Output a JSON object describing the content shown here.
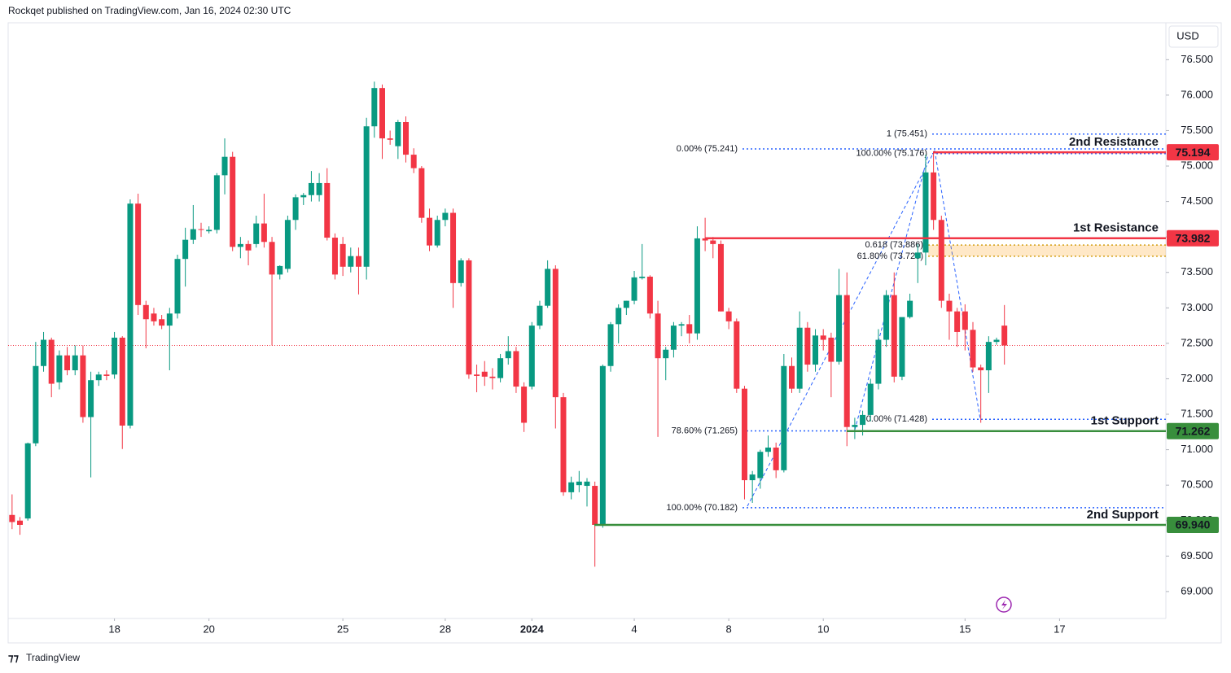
{
  "header": {
    "byline": "Rockqet published on TradingView.com, Jan 16, 2024 02:30 UTC",
    "brand": "TradingView"
  },
  "chart_data": {
    "type": "candlestick",
    "currency": "USD",
    "up_color": "#089981",
    "down_color": "#f23645",
    "grid": false,
    "ylim": [
      68.62,
      77.02
    ],
    "yticks": [
      {
        "value": 69,
        "label": "69.000"
      },
      {
        "value": 69.5,
        "label": "69.500"
      },
      {
        "value": 70,
        "label": "70.000"
      },
      {
        "value": 70.5,
        "label": "70.500"
      },
      {
        "value": 71,
        "label": "71.000"
      },
      {
        "value": 71.5,
        "label": "71.500"
      },
      {
        "value": 72,
        "label": "72.000"
      },
      {
        "value": 72.5,
        "label": "72.500"
      },
      {
        "value": 73,
        "label": "73.000"
      },
      {
        "value": 73.5,
        "label": "73.500"
      },
      {
        "value": 74,
        "label": "74.000"
      },
      {
        "value": 74.5,
        "label": "74.500"
      },
      {
        "value": 75,
        "label": "75.000"
      },
      {
        "value": 75.5,
        "label": "75.500"
      },
      {
        "value": 76,
        "label": "76.000"
      },
      {
        "value": 76.5,
        "label": "76.500"
      }
    ],
    "xlim": [
      -0.5,
      146.5
    ],
    "xticks": [
      {
        "value": 13,
        "label": "18"
      },
      {
        "value": 25,
        "label": "20"
      },
      {
        "value": 42,
        "label": "25"
      },
      {
        "value": 55,
        "label": "28"
      },
      {
        "value": 66,
        "label": "2024",
        "major": true
      },
      {
        "value": 79,
        "label": "4"
      },
      {
        "value": 91,
        "label": "8"
      },
      {
        "value": 103,
        "label": "10"
      },
      {
        "value": 121,
        "label": "15"
      },
      {
        "value": 133,
        "label": "17"
      }
    ],
    "open": [
      70.08,
      70.0,
      70.03,
      71.09,
      72.18,
      72.55,
      71.95,
      72.33,
      72.12,
      72.33,
      71.46,
      71.98,
      72.06,
      72.06,
      72.58,
      71.34,
      74.47,
      73.04,
      72.92,
      72.84,
      72.75,
      72.92,
      73.69,
      73.96,
      74.11,
      74.08,
      74.1,
      74.87,
      75.13,
      73.86,
      73.9,
      73.9,
      74.19,
      73.93,
      73.47,
      73.55,
      74.24,
      74.56,
      74.59,
      74.59,
      74.76,
      73.99,
      73.9,
      73.58,
      73.73,
      73.58,
      75.56,
      76.1,
      75.39,
      75.28,
      75.62,
      75.16,
      74.97,
      74.27,
      73.88,
      74.24,
      74.34,
      73.35,
      73.67,
      72.06,
      72.1,
      72.03,
      72.01,
      72.29,
      72.39,
      71.89,
      71.89,
      72.75,
      73.03,
      73.55,
      71.74,
      70.4,
      70.5,
      70.49,
      70.49,
      69.94,
      72.18,
      72.77,
      73.0,
      73.1,
      73.42,
      73.44,
      72.92,
      72.29,
      72.41,
      72.75,
      72.77,
      72.64,
      73.98,
      73.95,
      73.9,
      72.95,
      72.81,
      71.86,
      70.57,
      70.6,
      70.97,
      71.03,
      70.71,
      72.18,
      71.86,
      72.72,
      72.2,
      72.61,
      72.58,
      72.24,
      73.18,
      71.32,
      71.35,
      71.49,
      71.93,
      72.55,
      73.18,
      72.03,
      72.87,
      73.7,
      73.78,
      74.91,
      74.24,
      73.1,
      72.95,
      72.95,
      72.69,
      72.16,
      72.12,
      72.52,
      72.75
    ],
    "high": [
      70.37,
      70.05,
      71.1,
      72.52,
      72.66,
      72.58,
      72.4,
      72.45,
      72.47,
      72.47,
      72.1,
      72.1,
      72.12,
      72.66,
      72.6,
      74.53,
      74.61,
      73.1,
      73.0,
      72.9,
      73.0,
      73.75,
      74.13,
      74.45,
      74.2,
      74.15,
      74.9,
      75.39,
      75.2,
      74.0,
      73.95,
      74.3,
      74.61,
      74.0,
      73.6,
      74.3,
      74.6,
      74.62,
      74.93,
      74.9,
      74.97,
      74.05,
      74.0,
      73.85,
      73.85,
      75.68,
      76.19,
      76.15,
      75.5,
      75.65,
      75.7,
      75.25,
      75.0,
      74.4,
      74.3,
      74.4,
      74.4,
      73.7,
      73.7,
      72.2,
      72.25,
      72.15,
      72.35,
      72.6,
      72.45,
      71.95,
      72.8,
      73.1,
      73.67,
      73.6,
      71.8,
      70.62,
      70.7,
      70.6,
      70.55,
      72.2,
      72.8,
      73.05,
      73.1,
      73.52,
      73.9,
      73.46,
      73.1,
      72.45,
      72.8,
      72.8,
      72.9,
      74.15,
      74.27,
      74.0,
      73.95,
      73.0,
      72.85,
      71.9,
      70.7,
      71.0,
      71.2,
      71.1,
      72.35,
      72.3,
      72.95,
      72.8,
      72.7,
      72.7,
      72.65,
      73.55,
      73.5,
      71.45,
      71.55,
      72.0,
      72.7,
      73.25,
      73.5,
      72.85,
      73.2,
      73.9,
      75.16,
      75.2,
      74.3,
      73.2,
      73.0,
      73.05,
      72.8,
      72.2,
      72.6,
      72.58,
      73.04
    ],
    "low": [
      69.88,
      69.8,
      70.0,
      71.05,
      72.1,
      71.74,
      71.85,
      72.05,
      72.05,
      71.38,
      70.61,
      71.9,
      71.98,
      72.0,
      71.01,
      71.3,
      72.9,
      72.43,
      72.75,
      72.7,
      72.12,
      72.85,
      73.3,
      73.9,
      74.0,
      74.05,
      74.05,
      74.6,
      73.8,
      73.7,
      73.6,
      73.85,
      73.85,
      72.47,
      73.4,
      73.5,
      74.1,
      74.45,
      74.5,
      74.5,
      73.95,
      73.4,
      73.45,
      73.5,
      73.19,
      73.4,
      75.4,
      75.1,
      75.3,
      75.1,
      75.05,
      74.9,
      74.2,
      73.8,
      73.85,
      74.15,
      73.0,
      73.3,
      72.0,
      71.81,
      71.9,
      71.85,
      71.95,
      72.2,
      71.8,
      71.25,
      71.85,
      72.7,
      73.0,
      71.3,
      70.35,
      70.3,
      70.4,
      70.2,
      69.35,
      69.9,
      72.1,
      72.5,
      72.9,
      73.05,
      73.4,
      72.85,
      71.18,
      71.98,
      72.3,
      72.6,
      72.5,
      72.55,
      73.8,
      73.7,
      72.95,
      72.7,
      71.8,
      70.3,
      70.25,
      70.45,
      70.9,
      70.6,
      70.68,
      71.8,
      71.8,
      72.1,
      72.1,
      72.4,
      71.74,
      72.2,
      71.05,
      71.15,
      71.2,
      71.4,
      71.85,
      72.45,
      71.95,
      71.98,
      72.85,
      73.35,
      73.6,
      74.1,
      73.0,
      72.55,
      72.45,
      72.4,
      72.1,
      71.38,
      71.8,
      72.48,
      72.2
    ],
    "close": [
      69.98,
      69.94,
      71.09,
      72.18,
      72.55,
      71.93,
      72.33,
      72.12,
      72.33,
      71.46,
      71.98,
      72.06,
      72.04,
      72.58,
      71.34,
      74.47,
      73.04,
      72.84,
      72.81,
      72.75,
      72.92,
      73.69,
      73.96,
      74.11,
      74.1,
      74.1,
      74.87,
      75.13,
      73.86,
      73.9,
      73.81,
      74.19,
      73.93,
      73.47,
      73.59,
      74.24,
      74.56,
      74.59,
      74.76,
      74.76,
      73.99,
      73.47,
      73.58,
      73.73,
      73.58,
      75.56,
      76.1,
      75.39,
      75.37,
      75.62,
      75.16,
      74.97,
      74.27,
      73.88,
      74.24,
      74.34,
      73.35,
      73.67,
      72.06,
      72.04,
      72.03,
      72.01,
      72.29,
      72.39,
      71.89,
      71.38,
      72.75,
      73.03,
      73.55,
      71.74,
      70.4,
      70.54,
      70.55,
      70.55,
      69.94,
      72.18,
      72.77,
      73.0,
      73.1,
      73.43,
      73.44,
      72.92,
      72.29,
      72.41,
      72.75,
      72.77,
      72.64,
      73.98,
      73.95,
      73.9,
      72.95,
      72.81,
      71.86,
      70.57,
      70.65,
      70.97,
      71.03,
      70.71,
      72.18,
      71.86,
      72.72,
      72.2,
      72.61,
      72.55,
      72.24,
      73.18,
      71.32,
      71.35,
      71.49,
      71.93,
      72.55,
      73.18,
      72.03,
      72.87,
      73.1,
      73.78,
      74.91,
      74.24,
      73.1,
      72.95,
      72.66,
      72.69,
      72.16,
      72.12,
      72.52,
      72.55,
      72.47
    ],
    "levels": [
      {
        "label": "2nd Resistance",
        "value": 75.194,
        "color": "#f23645"
      },
      {
        "label": "1st Resistance",
        "value": 73.982,
        "color": "#f23645"
      },
      {
        "label": "1st Support",
        "value": 71.262,
        "color": "#388e3c"
      },
      {
        "label": "2nd Support",
        "value": 69.94,
        "value_label": "69.940",
        "color": "#388e3c"
      }
    ],
    "fib_lines": [
      {
        "label": "1 (75.451)",
        "value": 75.451,
        "color": "#2962ff"
      },
      {
        "label": "0.00% (75.241)",
        "value": 75.241,
        "color": "#2962ff"
      },
      {
        "label": "100.00% (75.176)",
        "value": 75.176,
        "color": "#2962ff"
      },
      {
        "label": "0.618 (73.886)",
        "value": 73.886,
        "color": "#d4a017"
      },
      {
        "label": "61.80% (73.728)",
        "value": 73.728,
        "color": "#d4a017"
      },
      {
        "label": "0.00% (71.428)",
        "value": 71.428,
        "color": "#2962ff"
      },
      {
        "label": "78.60% (71.265)",
        "value": 71.265,
        "color": "#2962ff"
      },
      {
        "label": "100.00% (70.182)",
        "value": 70.182,
        "color": "#2962ff"
      }
    ]
  }
}
